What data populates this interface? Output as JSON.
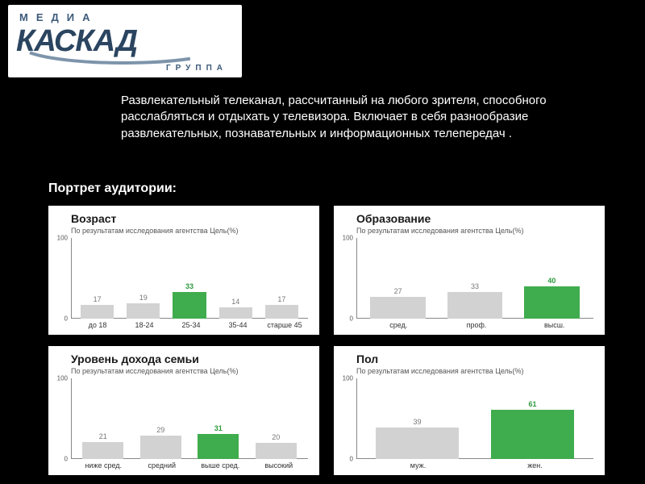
{
  "logo": {
    "top_text": "МЕДИА",
    "main_text": "КАСКАД",
    "bottom_text": "ГРУППА"
  },
  "description": "Развлекательный телеканал, рассчитанный на любого зрителя, способного расслабляться и отдыхать у телевизора. Включает в себя разнообразие развлекательных, познавательных и информационных телепередач .",
  "section_title": "Портрет аудитории:",
  "chart_common": {
    "subtitle": "По результатам исследования агентства Цель(%)",
    "ylim": [
      0,
      100
    ],
    "ytick_top": "100",
    "ytick_bottom": "0",
    "background_color": "#ffffff",
    "bar_color_normal": "#d2d2d2",
    "bar_color_highlight": "#3fac4d",
    "axis_color": "#888888"
  },
  "charts": [
    {
      "title": "Возраст",
      "categories": [
        "до 18",
        "18-24",
        "25-34",
        "35-44",
        "старше 45"
      ],
      "values": [
        17,
        19,
        33,
        14,
        17
      ],
      "highlight_index": 2
    },
    {
      "title": "Образование",
      "categories": [
        "сред.",
        "проф.",
        "высш."
      ],
      "values": [
        27,
        33,
        40
      ],
      "highlight_index": 2
    },
    {
      "title": "Уровень дохода семьи",
      "categories": [
        "ниже сред.",
        "средний",
        "выше сред.",
        "высокий"
      ],
      "values": [
        21,
        29,
        31,
        20
      ],
      "highlight_index": 2
    },
    {
      "title": "Пол",
      "categories": [
        "муж.",
        "жен."
      ],
      "values": [
        39,
        61
      ],
      "highlight_index": 1
    }
  ]
}
